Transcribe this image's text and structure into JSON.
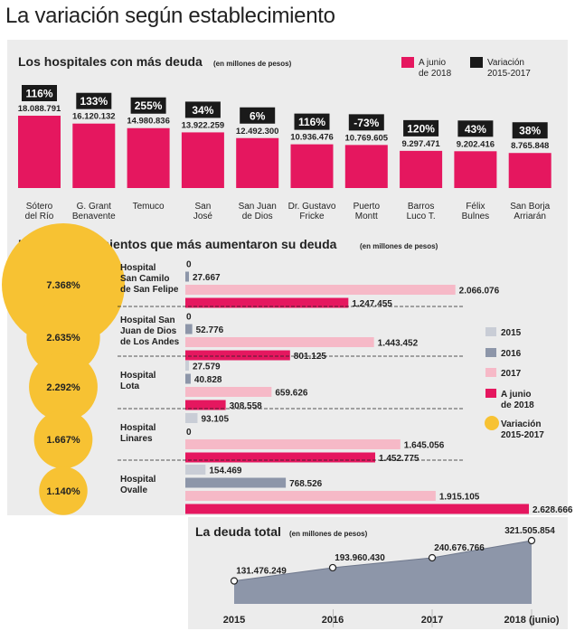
{
  "page_title": "La variación según establecimiento",
  "colors": {
    "ajunio": "#e5175f",
    "y2017": "#f6b9c7",
    "y2016": "#8d96a9",
    "y2015": "#c9cdd6",
    "variacion": "#f7c233",
    "dark": "#1a1a1a",
    "panel": "#ececec"
  },
  "chart_data": [
    {
      "type": "bar",
      "title": "Los hospitales con más deuda",
      "subtitle": "(en millones de pesos)",
      "legend": [
        {
          "label_1": "A junio",
          "label_2": "de 2018",
          "color": "#e5175f"
        },
        {
          "label_1": "Variación",
          "label_2": "2015-2017",
          "color": "#1a1a1a"
        }
      ],
      "categories": [
        [
          "Sótero",
          "del Río"
        ],
        [
          "G. Grant",
          "Benavente"
        ],
        [
          "Temuco"
        ],
        [
          "San",
          "José"
        ],
        [
          "San Juan",
          "de Dios"
        ],
        [
          "Dr. Gustavo",
          "Fricke"
        ],
        [
          "Puerto",
          "Montt"
        ],
        [
          "Barros",
          "Luco T."
        ],
        [
          "Félix",
          "Bulnes"
        ],
        [
          "San Borja",
          "Arriarán"
        ]
      ],
      "values": [
        18088791,
        16120132,
        14980836,
        13922259,
        12492300,
        10936476,
        10769605,
        9297471,
        9202416,
        8765848
      ],
      "value_labels": [
        "18.088.791",
        "16.120.132",
        "14.980.836",
        "13.922.259",
        "12.492.300",
        "10.936.476",
        "10.769.605",
        "9.297.471",
        "9.202.416",
        "8.765.848"
      ],
      "variation_labels": [
        "116%",
        "133%",
        "255%",
        "34%",
        "6%",
        "116%",
        "-73%",
        "120%",
        "43%",
        "38%"
      ]
    },
    {
      "type": "bar",
      "orientation": "horizontal",
      "title": "Los establecimientos que más aumentaron su deuda",
      "subtitle": "(en millones de pesos)",
      "legend": [
        {
          "label_1": "2015",
          "label_2": "",
          "color": "#c9cdd6"
        },
        {
          "label_1": "2016",
          "label_2": "",
          "color": "#8d96a9"
        },
        {
          "label_1": "2017",
          "label_2": "",
          "color": "#f6b9c7"
        },
        {
          "label_1": "A junio",
          "label_2": "de 2018",
          "color": "#e5175f"
        },
        {
          "label_1": "Variación",
          "label_2": "2015-2017",
          "color": "#f7c233"
        }
      ],
      "hospitals": [
        {
          "name": [
            "Hospital",
            "San Camilo",
            "de San Felipe"
          ],
          "variation": 7368,
          "variation_label": "7.368%",
          "values": [
            0,
            27667,
            2066076,
            1247455
          ],
          "labels": [
            "0",
            "27.667",
            "2.066.076",
            "1.247.455"
          ]
        },
        {
          "name": [
            "Hospital San",
            "Juan de Dios",
            "de Los Andes"
          ],
          "variation": 2635,
          "variation_label": "2.635%",
          "values": [
            0,
            52776,
            1443452,
            801125
          ],
          "labels": [
            "0",
            "52.776",
            "1.443.452",
            "801.125"
          ]
        },
        {
          "name": [
            "Hospital",
            "Lota"
          ],
          "variation": 2292,
          "variation_label": "2.292%",
          "values": [
            27579,
            40828,
            659626,
            308558
          ],
          "labels": [
            "27.579",
            "40.828",
            "659.626",
            "308.558"
          ]
        },
        {
          "name": [
            "Hospital",
            "Linares"
          ],
          "variation": 1667,
          "variation_label": "1.667%",
          "values": [
            93105,
            0,
            1645056,
            1452775
          ],
          "labels": [
            "93.105",
            "0",
            "1.645.056",
            "1.452.775"
          ]
        },
        {
          "name": [
            "Hospital",
            "Ovalle"
          ],
          "variation": 1140,
          "variation_label": "1.140%",
          "values": [
            154469,
            768526,
            1915105,
            2628666
          ],
          "labels": [
            "154.469",
            "768.526",
            "1.915.105",
            "2.628.666"
          ]
        }
      ]
    },
    {
      "type": "area",
      "title": "La deuda total",
      "subtitle": "(en millones de pesos)",
      "categories": [
        "2015",
        "2016",
        "2017",
        "2018 (junio)"
      ],
      "values": [
        131476249,
        193960430,
        240676766,
        321505854
      ],
      "value_labels": [
        "131.476.249",
        "193.960.430",
        "240.676.766",
        "321.505.854"
      ]
    }
  ]
}
